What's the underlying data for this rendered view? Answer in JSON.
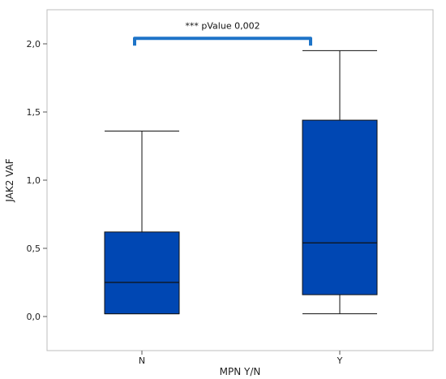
{
  "chart_data": {
    "type": "box",
    "xlabel": "MPN Y/N",
    "ylabel": "JAK2 VAF",
    "categories": [
      "N",
      "Y"
    ],
    "ylim": [
      -0.25,
      2.25
    ],
    "yticks": [
      {
        "value": 0.0,
        "label": "0,0"
      },
      {
        "value": 0.5,
        "label": "0,5"
      },
      {
        "value": 1.0,
        "label": "1,0"
      },
      {
        "value": 1.5,
        "label": "1,5"
      },
      {
        "value": 2.0,
        "label": "2,0"
      }
    ],
    "boxes": [
      {
        "category": "N",
        "min": 0.02,
        "q1": 0.02,
        "median": 0.25,
        "q3": 0.62,
        "max": 1.36
      },
      {
        "category": "Y",
        "min": 0.02,
        "q1": 0.16,
        "median": 0.54,
        "q3": 1.44,
        "max": 1.95
      }
    ],
    "annotation": {
      "text": "*** pValue 0,002",
      "y": 2.04
    },
    "colors": {
      "box_fill": "#0047b3",
      "bracket": "#1e74c8"
    },
    "grid": false
  }
}
